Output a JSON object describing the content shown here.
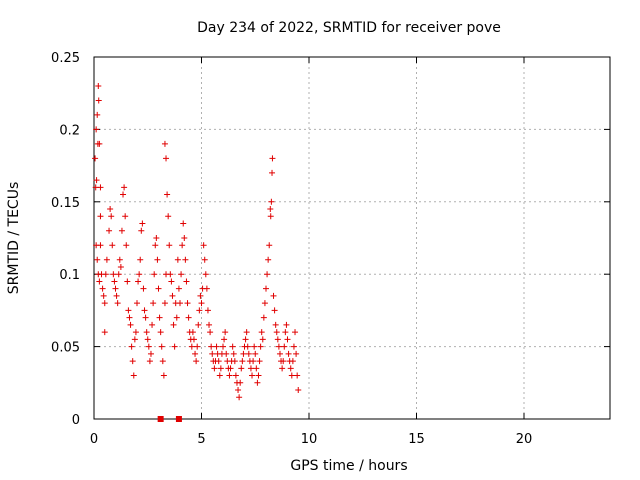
{
  "chart_data": {
    "type": "scatter",
    "title": "Day 234 of 2022, SRMTID for receiver pove",
    "xlabel": "GPS time / hours",
    "ylabel": "SRMTID / TECUs",
    "xlim": [
      0,
      24
    ],
    "ylim": [
      0,
      0.25
    ],
    "x_ticks": [
      0,
      5,
      10,
      15,
      20
    ],
    "x_tick_labels": [
      "0",
      "5",
      "10",
      "15",
      "20"
    ],
    "y_ticks": [
      0,
      0.05,
      0.1,
      0.15,
      0.2,
      0.25
    ],
    "y_tick_labels": [
      "0",
      "0.05",
      "0.1",
      "0.15",
      "0.2",
      "0.25"
    ],
    "grid": true,
    "marker": "plus",
    "series_color": "#e00000",
    "series": [
      {
        "name": "SRMTID",
        "points": [
          [
            0.05,
            0.18
          ],
          [
            0.1,
            0.2
          ],
          [
            0.15,
            0.21
          ],
          [
            0.2,
            0.23
          ],
          [
            0.22,
            0.22
          ],
          [
            0.18,
            0.19
          ],
          [
            0.12,
            0.165
          ],
          [
            0.08,
            0.16
          ],
          [
            0.25,
            0.19
          ],
          [
            0.3,
            0.16
          ],
          [
            0.1,
            0.12
          ],
          [
            0.15,
            0.11
          ],
          [
            0.2,
            0.1
          ],
          [
            0.25,
            0.095
          ],
          [
            0.3,
            0.12
          ],
          [
            0.35,
            0.1
          ],
          [
            0.4,
            0.09
          ],
          [
            0.45,
            0.085
          ],
          [
            0.5,
            0.08
          ],
          [
            0.55,
            0.1
          ],
          [
            0.6,
            0.11
          ],
          [
            0.3,
            0.14
          ],
          [
            0.5,
            0.06
          ],
          [
            0.7,
            0.13
          ],
          [
            0.75,
            0.145
          ],
          [
            0.8,
            0.14
          ],
          [
            0.85,
            0.12
          ],
          [
            0.9,
            0.1
          ],
          [
            0.95,
            0.095
          ],
          [
            1.0,
            0.09
          ],
          [
            1.05,
            0.085
          ],
          [
            1.1,
            0.08
          ],
          [
            1.15,
            0.1
          ],
          [
            1.2,
            0.11
          ],
          [
            1.25,
            0.105
          ],
          [
            1.3,
            0.13
          ],
          [
            1.35,
            0.155
          ],
          [
            1.4,
            0.16
          ],
          [
            1.45,
            0.14
          ],
          [
            1.5,
            0.12
          ],
          [
            1.55,
            0.095
          ],
          [
            1.6,
            0.075
          ],
          [
            1.65,
            0.07
          ],
          [
            1.7,
            0.065
          ],
          [
            1.75,
            0.05
          ],
          [
            1.8,
            0.04
          ],
          [
            1.85,
            0.03
          ],
          [
            1.9,
            0.055
          ],
          [
            1.95,
            0.06
          ],
          [
            2.0,
            0.08
          ],
          [
            2.05,
            0.095
          ],
          [
            2.1,
            0.1
          ],
          [
            2.15,
            0.11
          ],
          [
            2.2,
            0.13
          ],
          [
            2.25,
            0.135
          ],
          [
            2.3,
            0.09
          ],
          [
            2.35,
            0.075
          ],
          [
            2.4,
            0.07
          ],
          [
            2.45,
            0.06
          ],
          [
            2.5,
            0.055
          ],
          [
            2.55,
            0.05
          ],
          [
            2.6,
            0.04
          ],
          [
            2.65,
            0.045
          ],
          [
            2.7,
            0.065
          ],
          [
            2.75,
            0.08
          ],
          [
            2.8,
            0.1
          ],
          [
            2.85,
            0.12
          ],
          [
            2.9,
            0.125
          ],
          [
            2.95,
            0.11
          ],
          [
            3.0,
            0.09
          ],
          [
            3.05,
            0.07
          ],
          [
            3.1,
            0.06
          ],
          [
            3.15,
            0.05
          ],
          [
            3.2,
            0.04
          ],
          [
            3.25,
            0.03
          ],
          [
            3.3,
            0.08
          ],
          [
            3.35,
            0.1
          ],
          [
            3.4,
            0.155
          ],
          [
            3.45,
            0.14
          ],
          [
            3.5,
            0.12
          ],
          [
            3.3,
            0.19
          ],
          [
            3.35,
            0.18
          ],
          [
            3.55,
            0.1
          ],
          [
            3.6,
            0.095
          ],
          [
            3.65,
            0.085
          ],
          [
            3.7,
            0.065
          ],
          [
            3.75,
            0.05
          ],
          [
            3.8,
            0.08
          ],
          [
            3.85,
            0.07
          ],
          [
            3.9,
            0.11
          ],
          [
            3.95,
            0.09
          ],
          [
            4.0,
            0.08
          ],
          [
            4.05,
            0.1
          ],
          [
            4.1,
            0.12
          ],
          [
            4.15,
            0.135
          ],
          [
            4.2,
            0.125
          ],
          [
            4.25,
            0.11
          ],
          [
            4.3,
            0.095
          ],
          [
            4.35,
            0.08
          ],
          [
            4.4,
            0.07
          ],
          [
            4.45,
            0.06
          ],
          [
            4.5,
            0.055
          ],
          [
            4.55,
            0.05
          ],
          [
            4.6,
            0.06
          ],
          [
            4.65,
            0.055
          ],
          [
            4.7,
            0.045
          ],
          [
            4.75,
            0.04
          ],
          [
            4.8,
            0.05
          ],
          [
            4.85,
            0.065
          ],
          [
            4.9,
            0.075
          ],
          [
            4.95,
            0.085
          ],
          [
            5.0,
            0.08
          ],
          [
            5.05,
            0.09
          ],
          [
            5.1,
            0.12
          ],
          [
            5.15,
            0.11
          ],
          [
            5.2,
            0.1
          ],
          [
            5.25,
            0.09
          ],
          [
            5.3,
            0.075
          ],
          [
            5.35,
            0.065
          ],
          [
            5.4,
            0.06
          ],
          [
            5.45,
            0.05
          ],
          [
            5.5,
            0.045
          ],
          [
            5.55,
            0.04
          ],
          [
            5.6,
            0.035
          ],
          [
            5.65,
            0.04
          ],
          [
            5.7,
            0.05
          ],
          [
            5.75,
            0.045
          ],
          [
            5.8,
            0.04
          ],
          [
            5.85,
            0.03
          ],
          [
            5.9,
            0.035
          ],
          [
            5.95,
            0.045
          ],
          [
            6.0,
            0.05
          ],
          [
            6.05,
            0.055
          ],
          [
            6.1,
            0.06
          ],
          [
            6.15,
            0.045
          ],
          [
            6.2,
            0.04
          ],
          [
            6.25,
            0.035
          ],
          [
            6.3,
            0.03
          ],
          [
            6.35,
            0.035
          ],
          [
            6.4,
            0.04
          ],
          [
            6.45,
            0.05
          ],
          [
            6.5,
            0.045
          ],
          [
            6.55,
            0.04
          ],
          [
            6.6,
            0.03
          ],
          [
            6.65,
            0.025
          ],
          [
            6.7,
            0.02
          ],
          [
            6.75,
            0.015
          ],
          [
            6.8,
            0.025
          ],
          [
            6.85,
            0.035
          ],
          [
            6.9,
            0.04
          ],
          [
            6.95,
            0.045
          ],
          [
            7.0,
            0.05
          ],
          [
            7.05,
            0.055
          ],
          [
            7.1,
            0.06
          ],
          [
            7.15,
            0.05
          ],
          [
            7.2,
            0.045
          ],
          [
            7.25,
            0.04
          ],
          [
            7.3,
            0.035
          ],
          [
            7.35,
            0.03
          ],
          [
            7.4,
            0.04
          ],
          [
            7.45,
            0.05
          ],
          [
            7.5,
            0.045
          ],
          [
            7.55,
            0.035
          ],
          [
            7.6,
            0.025
          ],
          [
            7.65,
            0.03
          ],
          [
            7.7,
            0.04
          ],
          [
            7.75,
            0.05
          ],
          [
            7.8,
            0.06
          ],
          [
            7.85,
            0.055
          ],
          [
            7.9,
            0.07
          ],
          [
            7.95,
            0.08
          ],
          [
            8.0,
            0.09
          ],
          [
            8.05,
            0.1
          ],
          [
            8.1,
            0.11
          ],
          [
            8.15,
            0.12
          ],
          [
            8.2,
            0.145
          ],
          [
            8.25,
            0.15
          ],
          [
            8.3,
            0.18
          ],
          [
            8.28,
            0.17
          ],
          [
            8.22,
            0.14
          ],
          [
            8.35,
            0.085
          ],
          [
            8.4,
            0.075
          ],
          [
            8.45,
            0.065
          ],
          [
            8.5,
            0.06
          ],
          [
            8.55,
            0.055
          ],
          [
            8.6,
            0.05
          ],
          [
            8.65,
            0.045
          ],
          [
            8.7,
            0.04
          ],
          [
            8.75,
            0.035
          ],
          [
            8.8,
            0.04
          ],
          [
            8.85,
            0.05
          ],
          [
            8.9,
            0.06
          ],
          [
            8.95,
            0.065
          ],
          [
            9.0,
            0.055
          ],
          [
            9.05,
            0.045
          ],
          [
            9.1,
            0.04
          ],
          [
            9.15,
            0.035
          ],
          [
            9.2,
            0.03
          ],
          [
            9.25,
            0.04
          ],
          [
            9.3,
            0.05
          ],
          [
            9.35,
            0.06
          ],
          [
            9.4,
            0.045
          ],
          [
            9.45,
            0.03
          ],
          [
            9.5,
            0.02
          ]
        ]
      }
    ],
    "axis_markers": [
      {
        "x": 3.1,
        "y": 0
      },
      {
        "x": 3.95,
        "y": 0
      }
    ]
  }
}
